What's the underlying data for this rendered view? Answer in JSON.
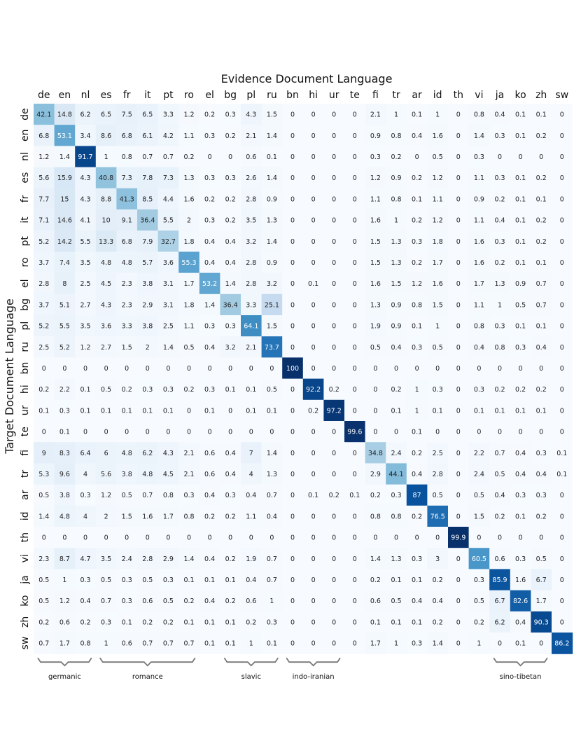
{
  "chart_data": {
    "type": "heatmap",
    "title": "",
    "xlabel": "Evidence Document Language",
    "ylabel": "Target Document Language",
    "x_categories": [
      "de",
      "en",
      "nl",
      "es",
      "fr",
      "it",
      "pt",
      "ro",
      "el",
      "bg",
      "pl",
      "ru",
      "bn",
      "hi",
      "ur",
      "te",
      "fi",
      "tr",
      "ar",
      "id",
      "th",
      "vi",
      "ja",
      "ko",
      "zh",
      "sw"
    ],
    "y_categories": [
      "de",
      "en",
      "nl",
      "es",
      "fr",
      "it",
      "pt",
      "ro",
      "el",
      "bg",
      "pl",
      "ru",
      "bn",
      "hi",
      "ur",
      "te",
      "fi",
      "tr",
      "ar",
      "id",
      "th",
      "vi",
      "ja",
      "ko",
      "zh",
      "sw"
    ],
    "value_range": [
      0,
      100
    ],
    "colormap": "Blues",
    "values": [
      [
        42.1,
        14.8,
        6.2,
        6.5,
        7.5,
        6.5,
        3.3,
        1.2,
        0.2,
        0.3,
        4.3,
        1.5,
        0,
        0,
        0,
        0,
        2.1,
        1,
        0.1,
        1,
        0,
        0.8,
        0.4,
        0.1,
        0.1,
        0
      ],
      [
        6.8,
        53.1,
        3.4,
        8.6,
        6.8,
        6.1,
        4.2,
        1.1,
        0.3,
        0.2,
        2.1,
        1.4,
        0,
        0,
        0,
        0,
        0.9,
        0.8,
        0.4,
        1.6,
        0,
        1.4,
        0.3,
        0.1,
        0.2,
        0
      ],
      [
        1.2,
        1.4,
        91.7,
        1,
        0.8,
        0.7,
        0.7,
        0.2,
        0,
        0,
        0.6,
        0.1,
        0,
        0,
        0,
        0,
        0.3,
        0.2,
        0,
        0.5,
        0,
        0.3,
        0,
        0,
        0,
        0
      ],
      [
        5.6,
        15.9,
        4.3,
        40.8,
        7.3,
        7.8,
        7.3,
        1.3,
        0.3,
        0.3,
        2.6,
        1.4,
        0,
        0,
        0,
        0,
        1.2,
        0.9,
        0.2,
        1.2,
        0,
        1.1,
        0.3,
        0.1,
        0.2,
        0
      ],
      [
        7.7,
        15,
        4.3,
        8.8,
        41.3,
        8.5,
        4.4,
        1.6,
        0.2,
        0.2,
        2.8,
        0.9,
        0,
        0,
        0,
        0,
        1.1,
        0.8,
        0.1,
        1.1,
        0,
        0.9,
        0.2,
        0.1,
        0.1,
        0
      ],
      [
        7.1,
        14.6,
        4.1,
        10,
        9.1,
        36.4,
        5.5,
        2,
        0.3,
        0.2,
        3.5,
        1.3,
        0,
        0,
        0,
        0,
        1.6,
        1,
        0.2,
        1.2,
        0,
        1.1,
        0.4,
        0.1,
        0.2,
        0
      ],
      [
        5.2,
        14.2,
        5.5,
        13.3,
        6.8,
        7.9,
        32.7,
        1.8,
        0.4,
        0.4,
        3.2,
        1.4,
        0,
        0,
        0,
        0,
        1.5,
        1.3,
        0.3,
        1.8,
        0,
        1.6,
        0.3,
        0.1,
        0.2,
        0
      ],
      [
        3.7,
        7.4,
        3.5,
        4.8,
        4.8,
        5.7,
        3.6,
        55.3,
        0.4,
        0.4,
        2.8,
        0.9,
        0,
        0,
        0,
        0,
        1.5,
        1.3,
        0.2,
        1.7,
        0,
        1.6,
        0.2,
        0.1,
        0.1,
        0
      ],
      [
        2.8,
        8,
        2.5,
        4.5,
        2.3,
        3.8,
        3.1,
        1.7,
        53.2,
        1.4,
        2.8,
        3.2,
        0,
        0.1,
        0,
        0,
        1.6,
        1.5,
        1.2,
        1.6,
        0,
        1.7,
        1.3,
        0.9,
        0.7,
        0
      ],
      [
        3.7,
        5.1,
        2.7,
        4.3,
        2.3,
        2.9,
        3.1,
        1.8,
        1.4,
        36.4,
        3.3,
        25.1,
        0,
        0,
        0,
        0,
        1.3,
        0.9,
        0.8,
        1.5,
        0,
        1.1,
        1,
        0.5,
        0.7,
        0
      ],
      [
        5.2,
        5.5,
        3.5,
        3.6,
        3.3,
        3.8,
        2.5,
        1.1,
        0.3,
        0.3,
        64.1,
        1.5,
        0,
        0,
        0,
        0,
        1.9,
        0.9,
        0.1,
        1,
        0,
        0.8,
        0.3,
        0.1,
        0.1,
        0
      ],
      [
        2.5,
        5.2,
        1.2,
        2.7,
        1.5,
        2,
        1.4,
        0.5,
        0.4,
        3.2,
        2.1,
        73.7,
        0,
        0,
        0,
        0,
        0.5,
        0.4,
        0.3,
        0.5,
        0,
        0.4,
        0.8,
        0.3,
        0.4,
        0
      ],
      [
        0,
        0,
        0,
        0,
        0,
        0,
        0,
        0,
        0,
        0,
        0,
        0,
        100,
        0,
        0,
        0,
        0,
        0,
        0,
        0,
        0,
        0,
        0,
        0,
        0,
        0
      ],
      [
        0.2,
        2.2,
        0.1,
        0.5,
        0.2,
        0.3,
        0.3,
        0.2,
        0.3,
        0.1,
        0.1,
        0.5,
        0,
        92.2,
        0.2,
        0,
        0,
        0.2,
        1,
        0.3,
        0,
        0.3,
        0.2,
        0.2,
        0.2,
        0
      ],
      [
        0.1,
        0.3,
        0.1,
        0.1,
        0.1,
        0.1,
        0.1,
        0,
        0.1,
        0,
        0.1,
        0.1,
        0,
        0.2,
        97.2,
        0,
        0,
        0.1,
        1,
        0.1,
        0,
        0.1,
        0.1,
        0.1,
        0.1,
        0
      ],
      [
        0,
        0.1,
        0,
        0,
        0,
        0,
        0,
        0,
        0,
        0,
        0,
        0,
        0,
        0,
        0,
        99.6,
        0,
        0,
        0.1,
        0,
        0,
        0,
        0,
        0,
        0,
        0
      ],
      [
        9,
        8.3,
        6.4,
        6,
        4.8,
        6.2,
        4.3,
        2.1,
        0.6,
        0.4,
        7,
        1.4,
        0,
        0,
        0,
        0,
        34.8,
        2.4,
        0.2,
        2.5,
        0,
        2.2,
        0.7,
        0.4,
        0.3,
        0.1
      ],
      [
        5.3,
        9.6,
        4,
        5.6,
        3.8,
        4.8,
        4.5,
        2.1,
        0.6,
        0.4,
        4,
        1.3,
        0,
        0,
        0,
        0,
        2.9,
        44.1,
        0.4,
        2.8,
        0,
        2.4,
        0.5,
        0.4,
        0.4,
        0.1
      ],
      [
        0.5,
        3.8,
        0.3,
        1.2,
        0.5,
        0.7,
        0.8,
        0.3,
        0.4,
        0.3,
        0.4,
        0.7,
        0,
        0.1,
        0.2,
        0.1,
        0.2,
        0.3,
        87,
        0.5,
        0,
        0.5,
        0.4,
        0.3,
        0.3,
        0
      ],
      [
        1.4,
        4.8,
        4,
        2,
        1.5,
        1.6,
        1.7,
        0.8,
        0.2,
        0.2,
        1.1,
        0.4,
        0,
        0,
        0,
        0,
        0.8,
        0.8,
        0.2,
        76.5,
        0,
        1.5,
        0.2,
        0.1,
        0.2,
        0
      ],
      [
        0,
        0,
        0,
        0,
        0,
        0,
        0,
        0,
        0,
        0,
        0,
        0,
        0,
        0,
        0,
        0,
        0,
        0,
        0,
        0,
        99.9,
        0,
        0,
        0,
        0,
        0
      ],
      [
        2.3,
        8.7,
        4.7,
        3.5,
        2.4,
        2.8,
        2.9,
        1.4,
        0.4,
        0.2,
        1.9,
        0.7,
        0,
        0,
        0,
        0,
        1.4,
        1.3,
        0.3,
        3,
        0,
        60.5,
        0.6,
        0.3,
        0.5,
        0
      ],
      [
        0.5,
        1,
        0.3,
        0.5,
        0.3,
        0.5,
        0.3,
        0.1,
        0.1,
        0.1,
        0.4,
        0.7,
        0,
        0,
        0,
        0,
        0.2,
        0.1,
        0.1,
        0.2,
        0,
        0.3,
        85.9,
        1.6,
        6.7,
        0
      ],
      [
        0.5,
        1.2,
        0.4,
        0.7,
        0.3,
        0.6,
        0.5,
        0.2,
        0.4,
        0.2,
        0.6,
        1,
        0,
        0,
        0,
        0,
        0.6,
        0.5,
        0.4,
        0.4,
        0,
        0.5,
        6.7,
        82.6,
        1.7,
        0
      ],
      [
        0.2,
        0.6,
        0.2,
        0.3,
        0.1,
        0.2,
        0.2,
        0.1,
        0.1,
        0.1,
        0.2,
        0.3,
        0,
        0,
        0,
        0,
        0.1,
        0.1,
        0.1,
        0.2,
        0,
        0.2,
        6.2,
        0.4,
        90.3,
        0
      ],
      [
        0.7,
        1.7,
        0.8,
        1,
        0.6,
        0.7,
        0.7,
        0.7,
        0.1,
        0.1,
        1,
        0.1,
        0,
        0,
        0,
        0,
        1.7,
        1,
        0.3,
        1.4,
        0,
        1,
        0,
        0.1,
        0,
        86.2
      ]
    ],
    "groups": [
      {
        "label": "germanic",
        "start": 0,
        "end": 2
      },
      {
        "label": "romance",
        "start": 3,
        "end": 7
      },
      {
        "label": "slavic",
        "start": 9,
        "end": 11
      },
      {
        "label": "indo-iranian",
        "start": 12,
        "end": 14
      },
      {
        "label": "sino-tibetan",
        "start": 22,
        "end": 24
      }
    ]
  }
}
